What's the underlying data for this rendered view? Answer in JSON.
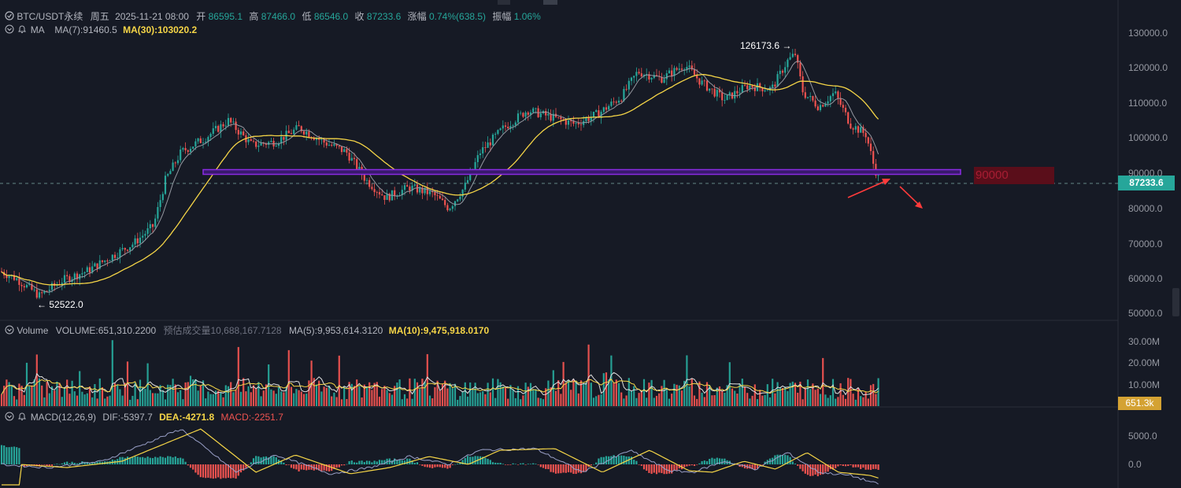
{
  "header": {
    "symbol": "BTC/USDT永续",
    "weekday": "周五",
    "datetime": "2025-11-21 08:00",
    "open_label": "开",
    "open": "86595.1",
    "high_label": "高",
    "high": "87466.0",
    "low_label": "低",
    "low": "86546.0",
    "close_label": "收",
    "close": "87233.6",
    "change_label": "涨幅",
    "change": "0.74%(638.5)",
    "amplitude_label": "振幅",
    "amplitude": "1.06%"
  },
  "ma_row": {
    "label": "MA",
    "ma7": "MA(7):91460.5",
    "ma30": "MA(30):103020.2"
  },
  "volume_row": {
    "label": "Volume",
    "volume": "VOLUME:651,310.2200",
    "predicted_label": "预估成交量",
    "predicted": "10,688,167.7128",
    "ma5": "MA(5):9,953,614.3120",
    "ma10": "MA(10):9,475,918.0170"
  },
  "macd_row": {
    "label": "MACD(12,26,9)",
    "dif": "DIF:-5397.7",
    "dea": "DEA:-4271.8",
    "macd": "MACD:-2251.7"
  },
  "annotations": {
    "high_marker": "126173.6",
    "low_marker": "52522.0",
    "level_box": "90000",
    "price_tag": "87233.6",
    "volume_tag": "651.3k"
  },
  "price_axis": [
    "130000.0",
    "120000.0",
    "110000.0",
    "100000.0",
    "90000.0",
    "80000.0",
    "70000.0",
    "60000.0",
    "50000.0"
  ],
  "volume_axis": [
    "30.00M",
    "20.00M",
    "10.00M"
  ],
  "macd_axis": [
    "5000.0",
    "0.0"
  ],
  "colors": {
    "background": "#161a25",
    "up": "#26a69a",
    "down": "#ef5350",
    "ma7": "#9598a1",
    "ma30": "#f5d547",
    "level_line": "#8a2be2",
    "arrow": "#ff3b3b"
  },
  "chart_data": {
    "type": "candlestick",
    "price_range": [
      50000,
      130000
    ],
    "indicators": [
      "MA(7)",
      "MA(30)",
      "Volume",
      "MACD(12,26,9)"
    ],
    "key_points": {
      "high": 126173.6,
      "low": 52522.0,
      "last_close": 87233.6,
      "level": 90000
    }
  }
}
